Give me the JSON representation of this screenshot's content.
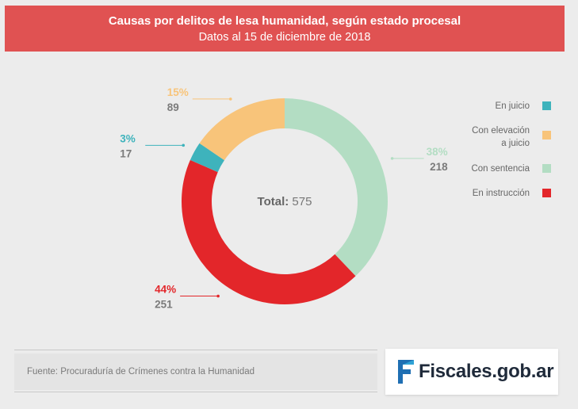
{
  "header": {
    "title": "Causas por delitos de lesa humanidad, según estado procesal",
    "subtitle": "Datos al 15 de diciembre de 2018",
    "color": "#e05252"
  },
  "chart_data": {
    "type": "pie",
    "donut": true,
    "center_label": "Total:",
    "center_value": "575",
    "slices": [
      {
        "name": "Con sentencia",
        "value": 218,
        "percent_label": "38%",
        "color": "#b3ddc3"
      },
      {
        "name": "En instrucción",
        "value": 251,
        "percent_label": "44%",
        "color": "#e3262a"
      },
      {
        "name": "En juicio",
        "value": 17,
        "percent_label": "3%",
        "color": "#3eb3bc"
      },
      {
        "name": "Con elevación a juicio",
        "value": 89,
        "percent_label": "15%",
        "color": "#f8c47a"
      }
    ],
    "legend": [
      {
        "lines": [
          "En juicio"
        ],
        "color": "#3eb3bc"
      },
      {
        "lines": [
          "Con elevación",
          "a juicio"
        ],
        "color": "#f8c47a"
      },
      {
        "lines": [
          "Con sentencia"
        ],
        "color": "#b3ddc3"
      },
      {
        "lines": [
          "En instrucción"
        ],
        "color": "#e3262a"
      }
    ],
    "legend_position": "right"
  },
  "footer": {
    "source": "Fuente: Procuraduría de Crímenes contra la Humanidad",
    "logo_text": "Fiscales",
    "logo_domain": ".gob.ar"
  }
}
